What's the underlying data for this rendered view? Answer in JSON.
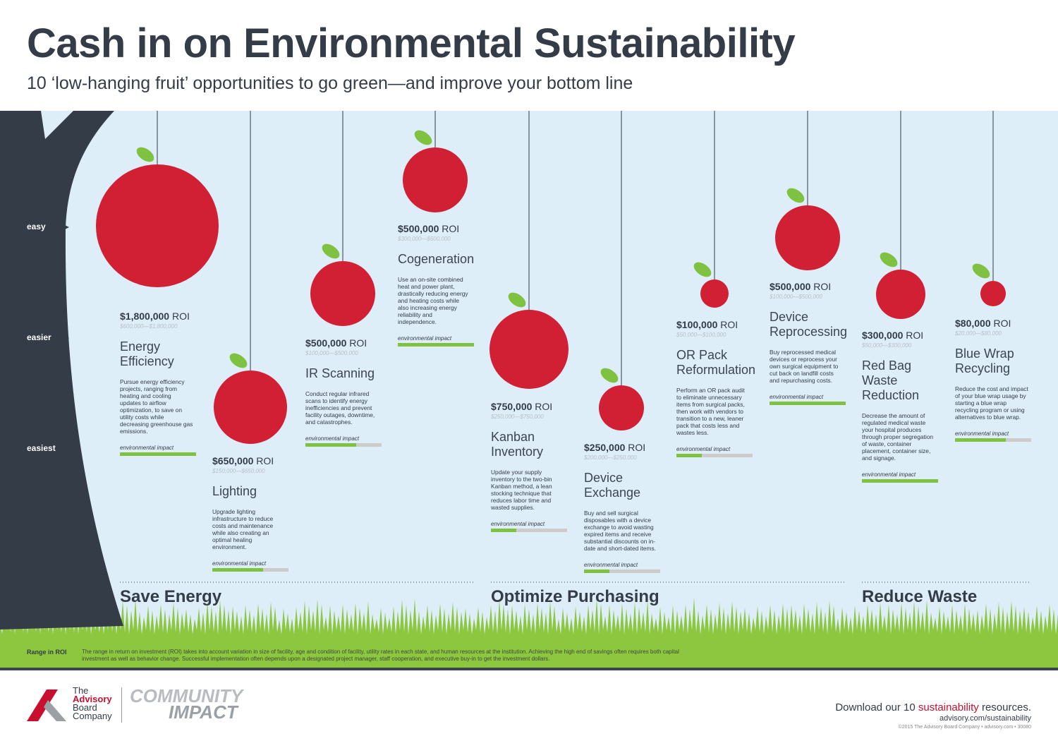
{
  "header": {
    "title": "Cash in on Environmental Sustainability",
    "subtitle": "10 ‘low-hanging fruit’ opportunities to go green—and improve your bottom line"
  },
  "ease_levels": [
    "easy",
    "easier",
    "easiest"
  ],
  "opportunities": [
    {
      "roi": "$1,800,000",
      "roi_label": "ROI",
      "range": "$600,000—$1,800,000",
      "title": "Energy Efficiency",
      "description": "Pursue energy efficiency projects, ranging from heating and cooling updates to airflow optimization, to save on utility costs while decreasing greenhouse gas emissions.",
      "impact_label": "environmental impact",
      "impact": 1
    },
    {
      "roi": "$650,000",
      "roi_label": "ROI",
      "range": "$150,000—$650,000",
      "title": "Lighting",
      "description": "Upgrade lighting infrastructure to reduce costs and maintenance while also creating an optimal healing environment.",
      "impact_label": "environmental impact",
      "impact": 0.67
    },
    {
      "roi": "$500,000",
      "roi_label": "ROI",
      "range": "$100,000—$500,000",
      "title": "IR Scanning",
      "description": "Conduct regular infrared scans to identify energy inefficiencies and prevent facility outages, downtime, and catastrophes.",
      "impact_label": "environmental impact",
      "impact": 0.67
    },
    {
      "roi": "$500,000",
      "roi_label": "ROI",
      "range": "$300,000—$500,000",
      "title": "Cogeneration",
      "description": "Use an on-site combined heat and power plant, drastically reducing energy and heating costs while also increasing energy reliability and independence.",
      "impact_label": "environmental impact",
      "impact": 1
    },
    {
      "roi": "$750,000",
      "roi_label": "ROI",
      "range": "$250,000—$750,000",
      "title": "Kanban Inventory",
      "description": "Update your supply inventory to the two-bin Kanban method, a lean stocking technique that reduces labor time and wasted supplies.",
      "impact_label": "environmental impact",
      "impact": 0.33
    },
    {
      "roi": "$250,000",
      "roi_label": "ROI",
      "range": "$200,000—$250,000",
      "title": "Device Exchange",
      "description": "Buy and sell surgical disposables with a device exchange to avoid wasting expired items and receive substantial discounts on in-date and short-dated items.",
      "impact_label": "environmental impact",
      "impact": 0.33
    },
    {
      "roi": "$100,000",
      "roi_label": "ROI",
      "range": "$50,000—$100,000",
      "title": "OR Pack Reformulation",
      "description": "Perform an OR pack audit to eliminate unnecessary items from surgical packs, then work with vendors to transition to a new, leaner pack that costs less and wastes less.",
      "impact_label": "environmental impact",
      "impact": 0.33
    },
    {
      "roi": "$500,000",
      "roi_label": "ROI",
      "range": "$100,000—$500,000",
      "title": "Device Reprocessing",
      "description": "Buy reprocessed medical devices or reprocess your own surgical equipment to cut back on landfill costs and repurchasing costs.",
      "impact_label": "environmental impact",
      "impact": 1
    },
    {
      "roi": "$300,000",
      "roi_label": "ROI",
      "range": "$50,000—$300,000",
      "title": "Red Bag Waste Reduction",
      "description": "Decrease the amount of regulated medical waste your hospital produces through proper segregation of waste, container placement, container size, and signage.",
      "impact_label": "environmental impact",
      "impact": 1
    },
    {
      "roi": "$80,000",
      "roi_label": "ROI",
      "range": "$20,000—$80,000",
      "title": "Blue Wrap Recycling",
      "description": "Reduce the cost and impact of your blue wrap usage by starting a blue wrap recycling program or using alternatives to blue wrap.",
      "impact_label": "environmental impact",
      "impact": 0.67
    }
  ],
  "categories": [
    "Save Energy",
    "Optimize Purchasing",
    "Reduce Waste"
  ],
  "footnote": {
    "label": "Range in ROI",
    "text": "The range in return on investment (ROI) takes into account variation in size of facility, age and condition of facility, utility rates in each state, and human resources at the institution. Achieving the high end of savings often requires both capital investment as well as behavior change. Successful implementation often depends upon a designated project manager, staff cooperation, and executive buy-in to get the investment dollars."
  },
  "footer": {
    "logo_line1": "The",
    "logo_line2": "Advisory",
    "logo_line3": "Board",
    "logo_line4": "Company",
    "community_1": "COMMUNITY",
    "community_2": "IMPACT",
    "download_pre": "Download our 10",
    "download_link": "sustainability",
    "download_post": "resources.",
    "url": "advisory.com/sustainability",
    "copyright": "©2015 The Advisory Board Company • advisory.com • 30080"
  }
}
